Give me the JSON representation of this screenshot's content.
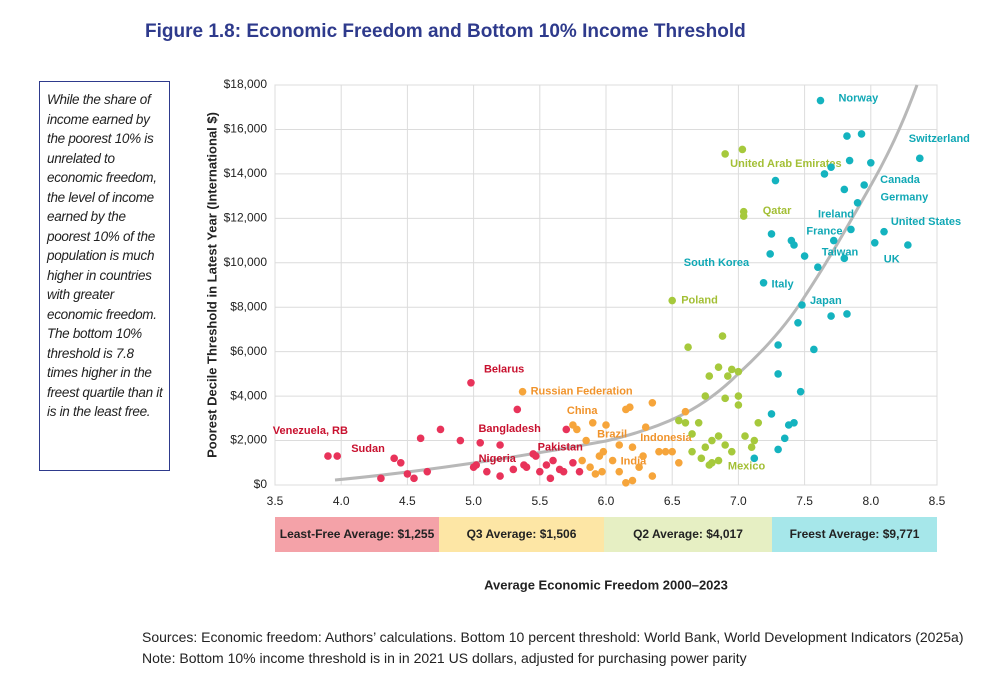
{
  "annotation": "While the share of income earned by the poorest 10% is unrelated to economic freedom, the level of income earned by the poorest 10% of the population is much higher in countries with greater economic freedom. The bottom 10% threshold is 7.8 times higher in the freest quartile than it is in the least free.",
  "sources": "Sources: Economic freedom: Authors’ calculations. Bottom 10 percent threshold: World Bank, World Development Indicators (2025a)",
  "note": "Note: Bottom 10% income threshold is in in 2021 US dollars, adjusted for purchasing power parity",
  "chart_data": {
    "type": "scatter",
    "title": "Figure 1.8: Economic Freedom and Bottom 10% Income Threshold",
    "x_label": "Average Economic Freedom 2000–2023",
    "y_label": "Poorest Decile Threshold in Latest Year (International $)",
    "xlim": [
      3.5,
      8.5
    ],
    "xticks": [
      3.5,
      {
        "value": 4,
        "label": "4.0"
      },
      4.5,
      {
        "value": 5,
        "label": "5.0"
      },
      5.5,
      {
        "value": 6,
        "label": "6.0"
      },
      6.5,
      {
        "value": 7,
        "label": "7.0"
      },
      7.5,
      {
        "value": 8,
        "label": "8.0"
      },
      8.5
    ],
    "ylim": [
      0,
      18000
    ],
    "yticks": [
      {
        "value": 0,
        "label": "$0"
      },
      {
        "value": 2000,
        "label": "$2,000"
      },
      {
        "value": 4000,
        "label": "$4,000"
      },
      {
        "value": 6000,
        "label": "$6,000"
      },
      {
        "value": 8000,
        "label": "$8,000"
      },
      {
        "value": 10000,
        "label": "$10,000"
      },
      {
        "value": 12000,
        "label": "$12,000"
      },
      {
        "value": 14000,
        "label": "$14,000"
      },
      {
        "value": 16000,
        "label": "$16,000"
      },
      {
        "value": 18000,
        "label": "$18,000"
      }
    ],
    "grid": true,
    "series": [
      {
        "name": "Least-Free Average: $1,255",
        "color": "#e8335a",
        "label_color": "#c8102e",
        "box_color": "#f4a2a8",
        "x": [
          3.9,
          3.97,
          4.98,
          5.47,
          5.38,
          5.7,
          4.3,
          4.4,
          4.45,
          4.5,
          4.6,
          4.65,
          4.75,
          4.9,
          5.0,
          5.02,
          5.05,
          5.1,
          5.2,
          5.3,
          5.33,
          5.4,
          5.45,
          5.5,
          5.55,
          5.6,
          5.58,
          5.65,
          5.68,
          5.75,
          5.8,
          5.2,
          4.55
        ],
        "values": [
          1300,
          1300,
          4600,
          1300,
          900,
          2500,
          300,
          1200,
          1000,
          500,
          2100,
          600,
          2500,
          2000,
          800,
          900,
          1900,
          600,
          1800,
          700,
          3400,
          800,
          1400,
          600,
          900,
          1100,
          300,
          700,
          600,
          1000,
          600,
          400,
          300
        ],
        "labels": [
          "Venezuela, RB",
          "Sudan",
          "Belarus",
          "Bangladesh",
          "Nigeria",
          "Pakistan",
          null,
          null,
          null,
          null,
          null,
          null,
          null,
          null,
          null,
          null,
          null,
          null,
          null,
          null,
          null,
          null,
          null,
          null,
          null,
          null,
          null,
          null,
          null,
          null,
          null,
          null,
          null
        ]
      },
      {
        "name": "Q3 Average: $1,506",
        "color": "#f6a53b",
        "label_color": "#f0932b",
        "box_color": "#fde6a5",
        "x": [
          5.37,
          5.75,
          5.85,
          6.1,
          6.05,
          5.78,
          5.9,
          5.95,
          6.0,
          5.82,
          5.88,
          5.92,
          6.1,
          6.15,
          6.18,
          6.2,
          6.3,
          6.35,
          6.4,
          6.45,
          6.5,
          6.55,
          6.25,
          6.35,
          6.6,
          6.15,
          5.98,
          6.28,
          6.2,
          5.97
        ],
        "values": [
          4200,
          2700,
          2000,
          1800,
          1100,
          2500,
          2800,
          1300,
          2700,
          1100,
          800,
          500,
          600,
          3400,
          3500,
          1700,
          2600,
          3700,
          1500,
          1500,
          1500,
          1000,
          800,
          400,
          3300,
          100,
          1500,
          1300,
          200,
          600
        ],
        "labels": [
          "Russian Federation",
          "China",
          "Brazil",
          "Indonesia",
          "India",
          null,
          null,
          null,
          null,
          null,
          null,
          null,
          null,
          null,
          null,
          null,
          null,
          null,
          null,
          null,
          null,
          null,
          null,
          null,
          null,
          null,
          null,
          null,
          null,
          null
        ]
      },
      {
        "name": "Q2 Average: $4,017",
        "color": "#a6c93c",
        "label_color": "#a3bf35",
        "box_color": "#e6efc3",
        "x": [
          6.9,
          7.04,
          6.5,
          6.8,
          7.03,
          7.04,
          6.62,
          6.88,
          6.85,
          6.95,
          7.0,
          6.92,
          6.78,
          6.75,
          6.9,
          7.0,
          7.0,
          6.6,
          6.65,
          6.7,
          6.75,
          6.8,
          6.85,
          6.9,
          6.95,
          7.05,
          7.1,
          7.15,
          7.12,
          6.72,
          6.78,
          6.85,
          6.55,
          6.65
        ],
        "values": [
          14900,
          12100,
          8300,
          1000,
          15100,
          12300,
          6200,
          6700,
          5300,
          5200,
          5100,
          4900,
          4900,
          4000,
          3900,
          4000,
          3600,
          2800,
          2300,
          2800,
          1700,
          2000,
          2200,
          1800,
          1500,
          2200,
          1700,
          2800,
          2000,
          1200,
          900,
          1100,
          2900,
          1500
        ],
        "labels": [
          "United Arab Emirates",
          "Qatar",
          "Poland",
          "Mexico",
          null,
          null,
          null,
          null,
          null,
          null,
          null,
          null,
          null,
          null,
          null,
          null,
          null,
          null,
          null,
          null,
          null,
          null,
          null,
          null,
          null,
          null,
          null,
          null,
          null,
          null,
          null,
          null,
          null,
          null
        ]
      },
      {
        "name": "Freest Average: $9,771",
        "color": "#14b3bf",
        "label_color": "#10a8b5",
        "box_color": "#a6e7ea",
        "x": [
          7.62,
          8.37,
          7.95,
          7.9,
          7.85,
          7.4,
          7.72,
          8.03,
          8.28,
          7.24,
          7.19,
          7.48,
          7.82,
          7.93,
          7.84,
          8.0,
          7.7,
          7.65,
          7.8,
          7.28,
          7.25,
          7.42,
          7.5,
          7.6,
          7.8,
          8.1,
          7.7,
          7.82,
          7.45,
          7.57,
          7.3,
          7.3,
          7.47,
          7.25,
          7.38,
          7.35,
          7.3,
          7.12,
          7.42
        ],
        "values": [
          17300,
          14700,
          13500,
          12700,
          11500,
          11000,
          11000,
          10900,
          10800,
          10400,
          9100,
          8100,
          15700,
          15800,
          14600,
          14500,
          14300,
          14000,
          13300,
          13700,
          11300,
          10800,
          10300,
          9800,
          10200,
          11400,
          7600,
          7700,
          7300,
          6100,
          6300,
          5000,
          4200,
          3200,
          2700,
          2100,
          1600,
          1200,
          2800
        ],
        "labels": [
          "Norway",
          "Switzerland",
          "Canada",
          "Germany",
          "Ireland",
          "France",
          "Taiwan",
          "UK",
          "United States",
          "South Korea",
          "Italy",
          "Japan",
          null,
          null,
          null,
          null,
          null,
          null,
          null,
          null,
          null,
          null,
          null,
          null,
          null,
          null,
          null,
          null,
          null,
          null,
          null,
          null,
          null,
          null,
          null,
          null,
          null,
          null,
          null
        ]
      }
    ]
  }
}
